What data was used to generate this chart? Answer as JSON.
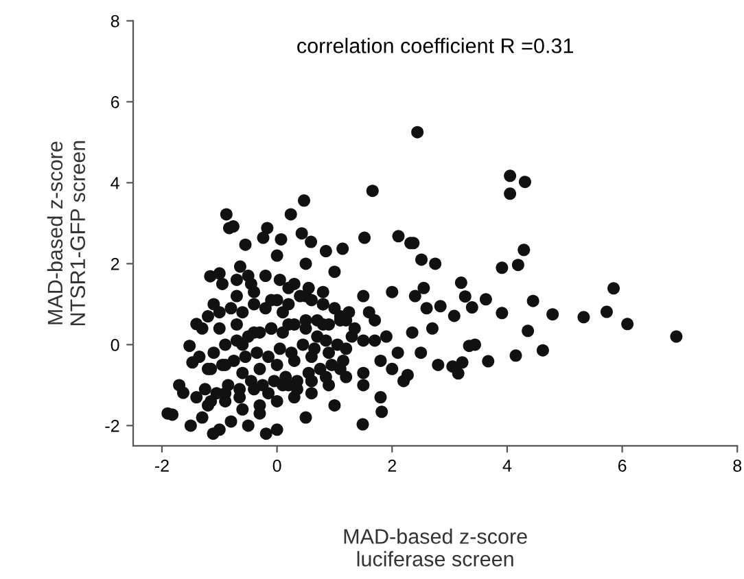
{
  "chart_data": {
    "type": "scatter",
    "xlabel": "MAD-based z-score\nluciferase screen",
    "ylabel": "MAD-based z-score\nNTSR1-GFP screen",
    "annotations": [
      "correlation coefficient R =0.31"
    ],
    "xlim": [
      -2.5,
      8
    ],
    "ylim": [
      -2.5,
      8
    ],
    "xticks": [
      -2,
      0,
      2,
      4,
      6,
      8
    ],
    "yticks": [
      -2,
      0,
      2,
      4,
      6,
      8
    ],
    "grid": false,
    "legend": false,
    "marker": "circle",
    "series": [
      {
        "color": "#111111",
        "x": [
          2.44,
          4.05,
          4.31,
          4.05,
          4.29,
          3.91,
          4.19,
          5.85,
          5.73,
          5.33,
          6.09,
          6.94,
          4.79,
          4.45,
          3.91,
          4.36,
          4.62,
          4.15,
          3.63,
          3.67,
          3.2,
          3.27,
          3.39,
          3.08,
          3.44,
          3.34,
          3.22,
          3.15,
          3.05,
          2.84,
          2.37,
          2.51,
          2.75,
          2.4,
          2.6,
          2.7,
          2.5,
          2.8,
          2.35,
          2.55,
          1.66,
          0.47,
          0.24,
          -0.88,
          -0.76,
          -0.83,
          1.52,
          2.11,
          2.32,
          -0.55,
          -0.17,
          -0.24,
          0.07,
          0.43,
          0.59,
          1.14,
          0.85,
          -1.16,
          -1.0,
          -0.64,
          -1.82,
          -1.11,
          -0.19,
          1.49,
          1.82,
          2.27,
          -1.63,
          -1.47,
          -1.52,
          -1.4,
          -1.9,
          -1.7,
          -1.3,
          -1.1,
          -0.5,
          0.0,
          0.5,
          1.0,
          1.5,
          2.0,
          -1.5,
          -1.0,
          -0.5,
          0.0,
          0.5,
          1.0,
          1.5,
          2.0,
          -1.2,
          -0.9,
          -0.6,
          -0.3,
          0.0,
          0.3,
          0.6,
          0.9,
          1.2,
          1.5,
          1.8,
          -1.2,
          -0.9,
          -0.6,
          -0.3,
          0.0,
          0.3,
          0.6,
          0.9,
          1.2,
          1.5,
          -1.0,
          -0.7,
          -0.4,
          -0.1,
          0.2,
          0.5,
          0.8,
          1.1,
          -0.7,
          -0.4,
          -0.1,
          0.2,
          0.5,
          0.8,
          -1.3,
          -0.8,
          -0.3,
          0.2,
          0.7,
          1.2,
          1.7,
          -0.6,
          0.1,
          0.6,
          -1.25,
          -1.05,
          -0.85,
          -0.65,
          -0.45,
          -0.25,
          -0.05,
          0.15,
          0.35,
          0.55,
          0.75,
          0.95,
          1.15,
          -1.15,
          -0.95,
          -0.75,
          -0.55,
          -0.35,
          -0.15,
          0.05,
          0.25,
          0.45,
          0.65,
          0.85,
          1.05,
          1.3,
          -1.35,
          -1.1,
          -0.9,
          -0.7,
          -0.5,
          -0.3,
          -0.1,
          0.1,
          0.3,
          0.5,
          0.7,
          0.9,
          1.1,
          1.35,
          -1.2,
          -1.0,
          -0.8,
          -0.6,
          -0.4,
          -0.2,
          0.0,
          0.2,
          0.4,
          0.6,
          0.8,
          1.0,
          1.25,
          -1.4,
          -1.15,
          -0.9,
          -0.65,
          -0.4,
          -0.15,
          0.1,
          0.35,
          0.6,
          0.85,
          1.1,
          -0.95,
          -0.7,
          -0.45,
          -0.2,
          0.05,
          0.3,
          0.55,
          0.8,
          1.7,
          1.9,
          2.1,
          1.8,
          2.2,
          1.6
        ],
        "values": [
          5.25,
          4.17,
          4.02,
          3.73,
          2.34,
          1.9,
          1.97,
          1.39,
          0.81,
          0.68,
          0.51,
          0.2,
          0.75,
          1.08,
          0.78,
          0.34,
          -0.14,
          -0.27,
          1.12,
          -0.41,
          1.53,
          1.19,
          0.92,
          0.71,
          0.0,
          -0.03,
          -0.44,
          -0.71,
          -0.54,
          0.95,
          2.51,
          2.1,
          2.0,
          1.2,
          0.9,
          0.4,
          -0.2,
          -0.5,
          0.3,
          1.4,
          3.8,
          3.56,
          3.22,
          3.22,
          2.92,
          2.88,
          2.64,
          2.68,
          2.51,
          2.47,
          2.88,
          2.64,
          2.6,
          2.75,
          2.54,
          2.37,
          2.31,
          1.69,
          1.76,
          1.93,
          -1.73,
          -2.2,
          -2.2,
          -1.97,
          -1.66,
          -0.75,
          -1.19,
          -0.44,
          -0.03,
          0.51,
          -1.7,
          -1.0,
          0.4,
          1.0,
          1.7,
          2.2,
          2.0,
          1.8,
          1.2,
          1.3,
          -2.0,
          -2.1,
          -2.0,
          -2.1,
          -1.8,
          -1.5,
          -1.0,
          -0.6,
          -1.5,
          -1.4,
          -1.6,
          -1.5,
          -1.4,
          -1.3,
          -1.2,
          -1.0,
          -0.8,
          -0.7,
          -0.4,
          -0.6,
          -0.5,
          -0.7,
          -0.6,
          -0.5,
          -0.4,
          -0.3,
          -0.2,
          -0.1,
          0.1,
          0.4,
          0.5,
          0.3,
          0.4,
          0.5,
          0.6,
          0.5,
          0.6,
          1.2,
          1.3,
          1.1,
          1.4,
          1.2,
          1.0,
          -1.8,
          -1.9,
          -1.7,
          -1.0,
          0.2,
          0.6,
          0.1,
          0.0,
          0.8,
          -0.9,
          -1.1,
          -1.2,
          -1.0,
          -1.1,
          -0.9,
          -1.0,
          -0.9,
          -0.8,
          -0.9,
          -0.7,
          -0.6,
          -0.5,
          -0.4,
          -0.6,
          -0.5,
          -0.4,
          -0.3,
          -0.2,
          -0.3,
          -0.1,
          -0.2,
          0.0,
          -0.1,
          0.1,
          0.0,
          0.2,
          -0.3,
          -0.2,
          0.0,
          0.1,
          0.2,
          0.3,
          0.4,
          0.3,
          0.5,
          0.4,
          0.6,
          0.5,
          0.7,
          0.4,
          0.7,
          0.8,
          0.9,
          0.8,
          1.0,
          0.9,
          1.1,
          1.0,
          1.2,
          1.1,
          1.0,
          0.9,
          0.8,
          -1.3,
          -1.4,
          -1.2,
          -1.3,
          -1.1,
          -1.2,
          -1.0,
          -1.1,
          -0.9,
          -0.8,
          -0.6,
          1.5,
          1.6,
          1.5,
          1.7,
          1.6,
          1.5,
          1.4,
          1.3,
          0.6,
          0.2,
          -0.2,
          -1.3,
          -0.9,
          0.8
        ]
      }
    ]
  }
}
